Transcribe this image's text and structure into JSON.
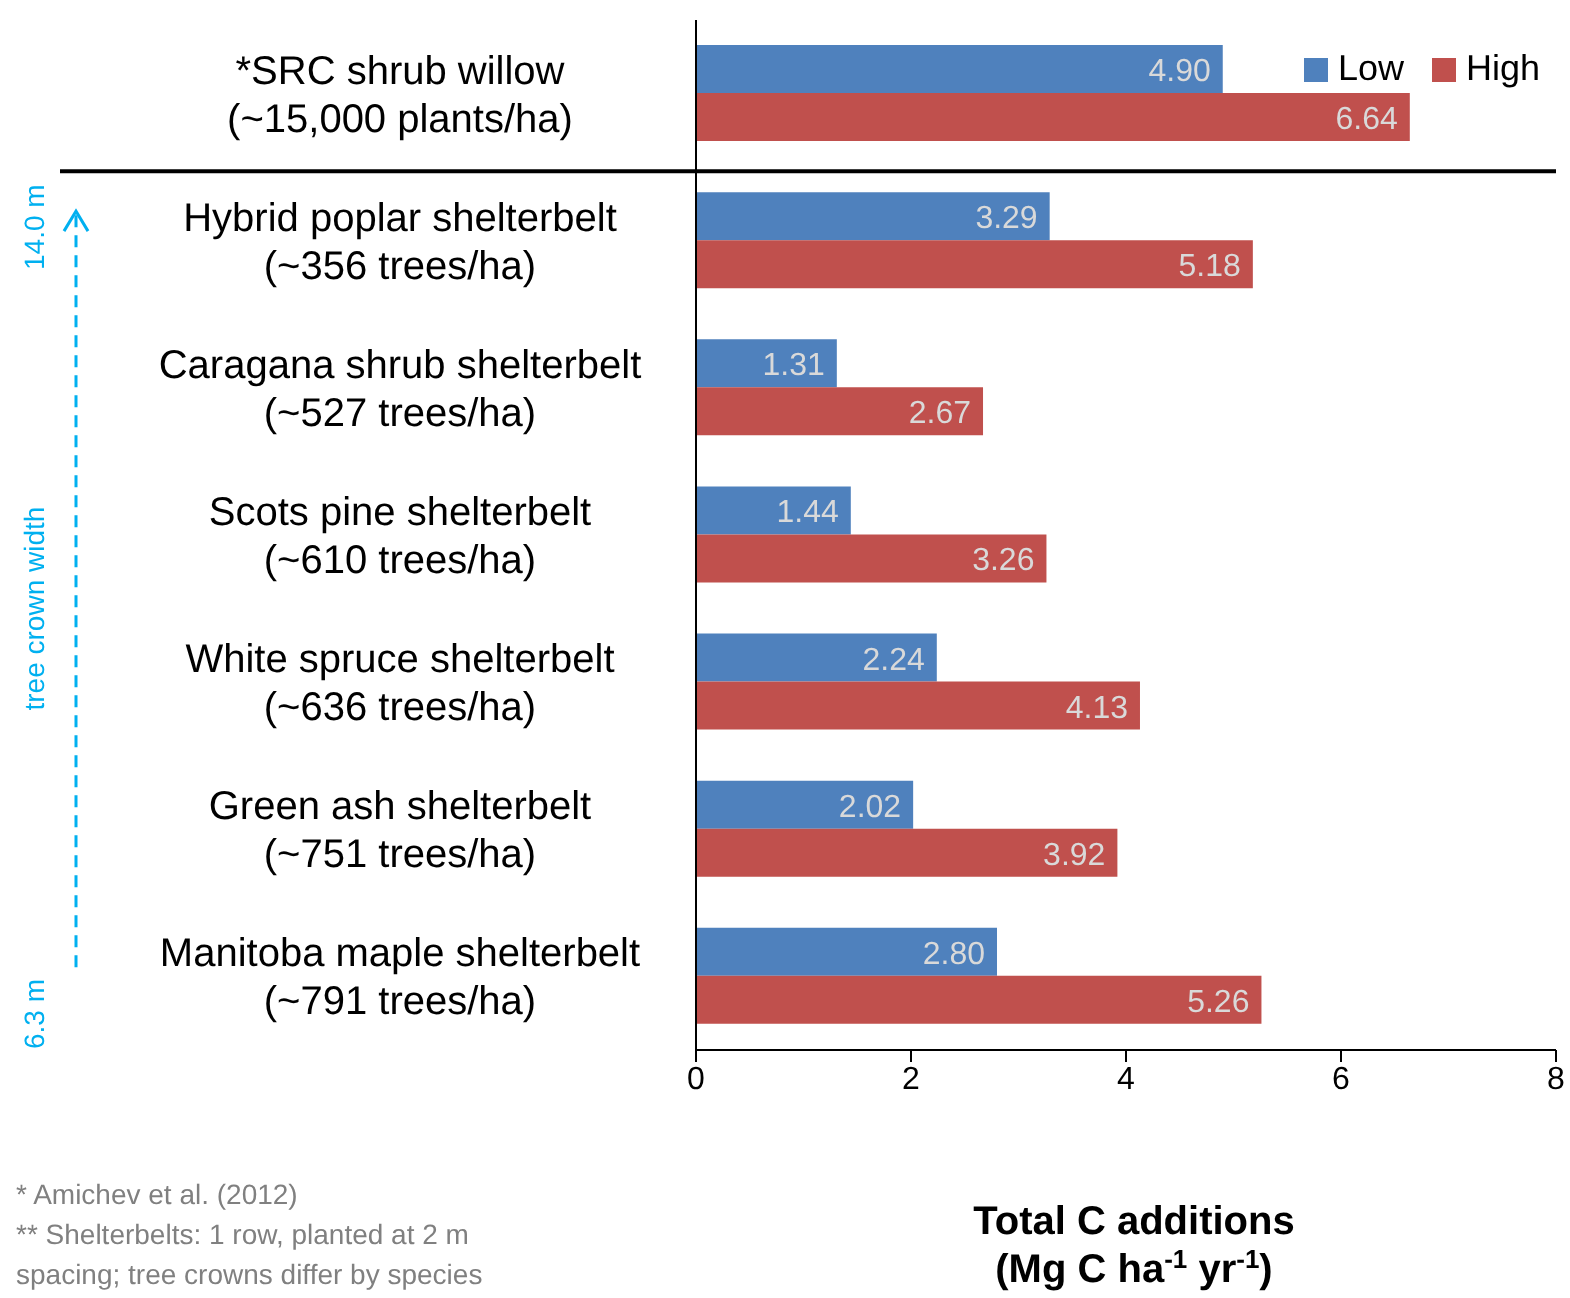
{
  "chart_data": {
    "type": "bar",
    "orientation": "horizontal",
    "categories": [
      "*SRC shrub willow\n(~15,000 plants/ha)",
      "Hybrid poplar shelterbelt\n(~356 trees/ha)",
      "Caragana shrub shelterbelt\n(~527 trees/ha)",
      "Scots pine shelterbelt\n(~610 trees/ha)",
      "White spruce shelterbelt\n(~636 trees/ha)",
      "Green ash shelterbelt\n(~751 trees/ha)",
      "Manitoba maple shelterbelt\n(~791 trees/ha)"
    ],
    "series": [
      {
        "name": "Low",
        "color": "#4f81bd",
        "values": [
          4.9,
          3.29,
          1.31,
          1.44,
          2.24,
          2.02,
          2.8
        ],
        "value_labels": [
          "4.90",
          "3.29",
          "1.31",
          "1.44",
          "2.24",
          "2.02",
          "2.80"
        ]
      },
      {
        "name": "High",
        "color": "#c0504d",
        "values": [
          6.64,
          5.18,
          2.67,
          3.26,
          4.13,
          3.92,
          5.26
        ],
        "value_labels": [
          "6.64",
          "5.18",
          "2.67",
          "3.26",
          "4.13",
          "3.92",
          "5.26"
        ]
      }
    ],
    "xlim": [
      0,
      8
    ],
    "xticks": [
      0,
      2,
      4,
      6,
      8
    ],
    "xlabel": "Total C additions\n(Mg C ha$^{-1}$ yr$^{-1}$)",
    "legend": "top right",
    "grid": false,
    "annotations": [
      "14.0 m",
      "tree crown width",
      "6.3 m",
      "* Amichev et al. (2012)",
      "** Shelterbelts: 1 row, planted at 2 m\nspacing; tree crowns differ by species"
    ]
  }
}
